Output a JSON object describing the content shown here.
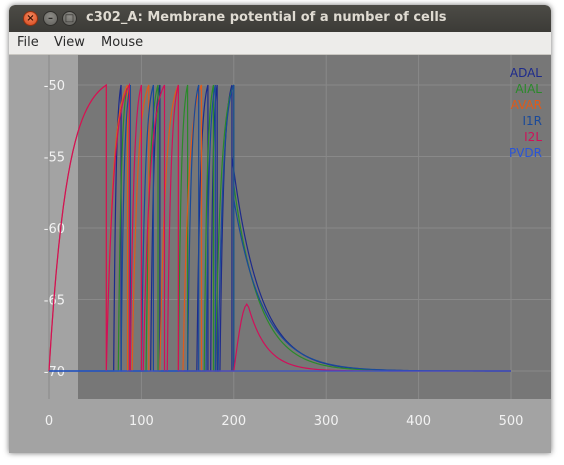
{
  "window": {
    "title": "c302_A: Membrane potential of a number of cells"
  },
  "window_buttons": {
    "close_glyph": "×",
    "minimize_glyph": "–",
    "maximize_glyph": "□"
  },
  "menu": {
    "items": [
      "File",
      "View",
      "Mouse"
    ]
  },
  "chart_data": {
    "type": "line",
    "title": "",
    "xlabel": "",
    "ylabel": "",
    "xlim": [
      -50,
      555
    ],
    "ylim": [
      -72,
      -49
    ],
    "x_ticks": [
      0,
      100,
      200,
      300,
      400,
      500
    ],
    "x_tick_labels": [
      "0",
      "100",
      "200",
      "300",
      "400",
      "500"
    ],
    "y_ticks": [
      -50,
      -55,
      -60,
      -65,
      -70
    ],
    "y_tick_labels": [
      "-50",
      "-55",
      "-60",
      "-65",
      "-70"
    ],
    "grid": true,
    "legend_position": "top-right",
    "background_color": "#777777",
    "outer_color": "#a3a3a3",
    "grid_color": "#898989",
    "tick_label_color": "#f2f2f2",
    "series": [
      {
        "name": "ADAL",
        "color": "#1d2a8c",
        "rest": -70,
        "spikes": [
          [
            70,
            78
          ],
          [
            110,
            120
          ],
          [
            160,
            172
          ],
          [
            175,
            182
          ],
          [
            185,
            198
          ]
        ],
        "tail": {
          "t0": 198,
          "v0": -55,
          "tau": 30,
          "end": 500
        }
      },
      {
        "name": "AIAL",
        "color": "#2a8a2a",
        "rest": -70,
        "spikes": [
          [
            75,
            85
          ],
          [
            105,
            118
          ],
          [
            140,
            150
          ],
          [
            168,
            178
          ],
          [
            180,
            200
          ]
        ],
        "tail": {
          "t0": 200,
          "v0": -57,
          "tau": 28,
          "end": 500
        }
      },
      {
        "name": "AVAR",
        "color": "#e05a1a",
        "rest": -70,
        "spikes": [
          [
            0,
            62
          ],
          [
            62,
            85
          ],
          [
            90,
            108
          ],
          [
            120,
            140
          ],
          [
            145,
            165
          ]
        ],
        "tail": {
          "t0": 200,
          "v0": -70,
          "tau": 20,
          "end": 500
        }
      },
      {
        "name": "I1R",
        "color": "#1a4a9a",
        "rest": -70,
        "spikes": [
          [
            78,
            88
          ],
          [
            100,
            113
          ],
          [
            150,
            162
          ],
          [
            170,
            180
          ],
          [
            183,
            200
          ]
        ],
        "tail": {
          "t0": 200,
          "v0": -58,
          "tau": 32,
          "end": 500
        }
      },
      {
        "name": "I2L",
        "color": "#d0105a",
        "rest": -70,
        "spikes": [
          [
            0,
            62
          ],
          [
            62,
            87
          ],
          [
            88,
            100
          ],
          [
            102,
            125
          ],
          [
            128,
            140
          ]
        ],
        "bump": {
          "t0": 200,
          "peak_t": 215,
          "peak_v": -65.3,
          "tau": 20,
          "end": 500
        }
      },
      {
        "name": "PVDR",
        "color": "#2a55d8",
        "rest": -70,
        "flat": [
          0,
          500
        ]
      }
    ]
  }
}
